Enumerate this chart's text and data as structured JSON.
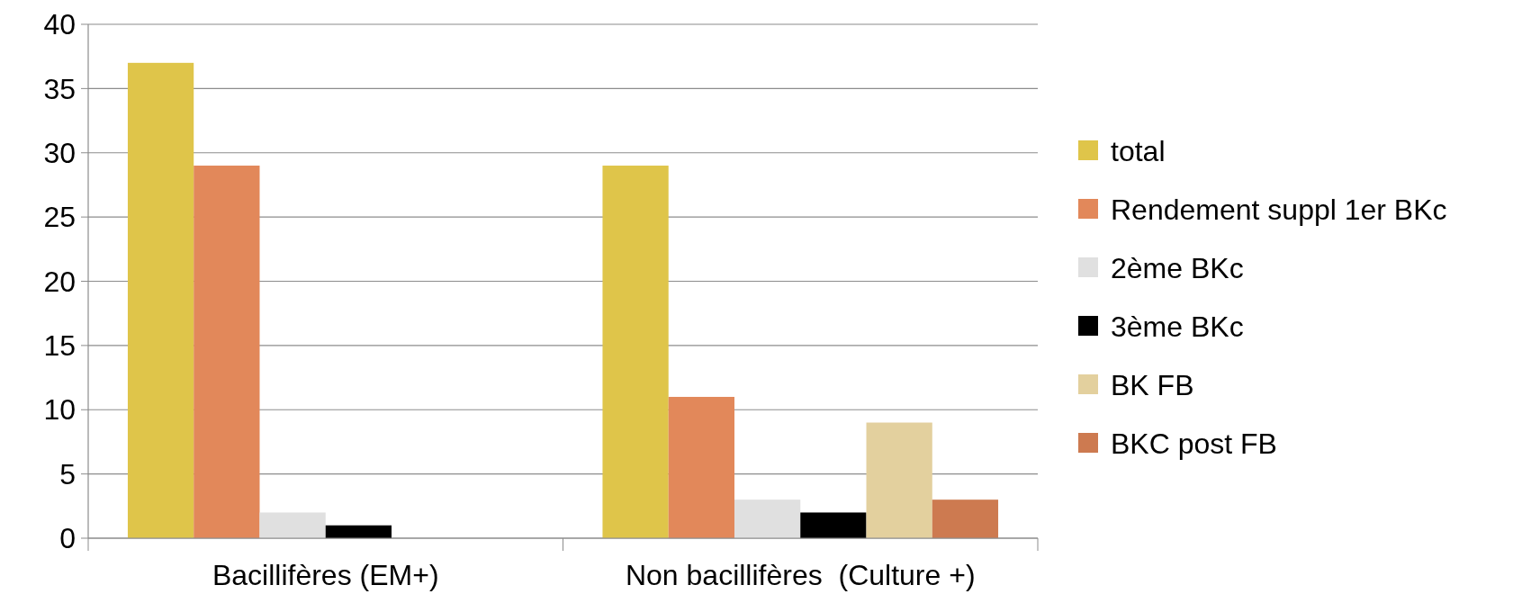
{
  "chart_data": {
    "type": "bar",
    "categories": [
      "Bacillifères (EM+)",
      "Non bacillifères  (Culture +)"
    ],
    "series": [
      {
        "name": "total",
        "color": "#dfc54a",
        "values": [
          37,
          29
        ]
      },
      {
        "name": "Rendement suppl 1er BKc",
        "color": "#e2885a",
        "values": [
          29,
          11
        ]
      },
      {
        "name": "2ème BKc",
        "color": "#e0e0e0",
        "values": [
          2,
          3
        ]
      },
      {
        "name": "3ème BKc",
        "color": "#000000",
        "values": [
          1,
          2
        ]
      },
      {
        "name": "BK FB",
        "color": "#e3d09e",
        "values": [
          0,
          9
        ]
      },
      {
        "name": "BKC post FB",
        "color": "#cd7a50",
        "values": [
          0,
          3
        ]
      }
    ],
    "ylim": [
      0,
      40
    ],
    "yticks": [
      0,
      5,
      10,
      15,
      20,
      25,
      30,
      35,
      40
    ],
    "grid": "y",
    "legend": "right"
  }
}
